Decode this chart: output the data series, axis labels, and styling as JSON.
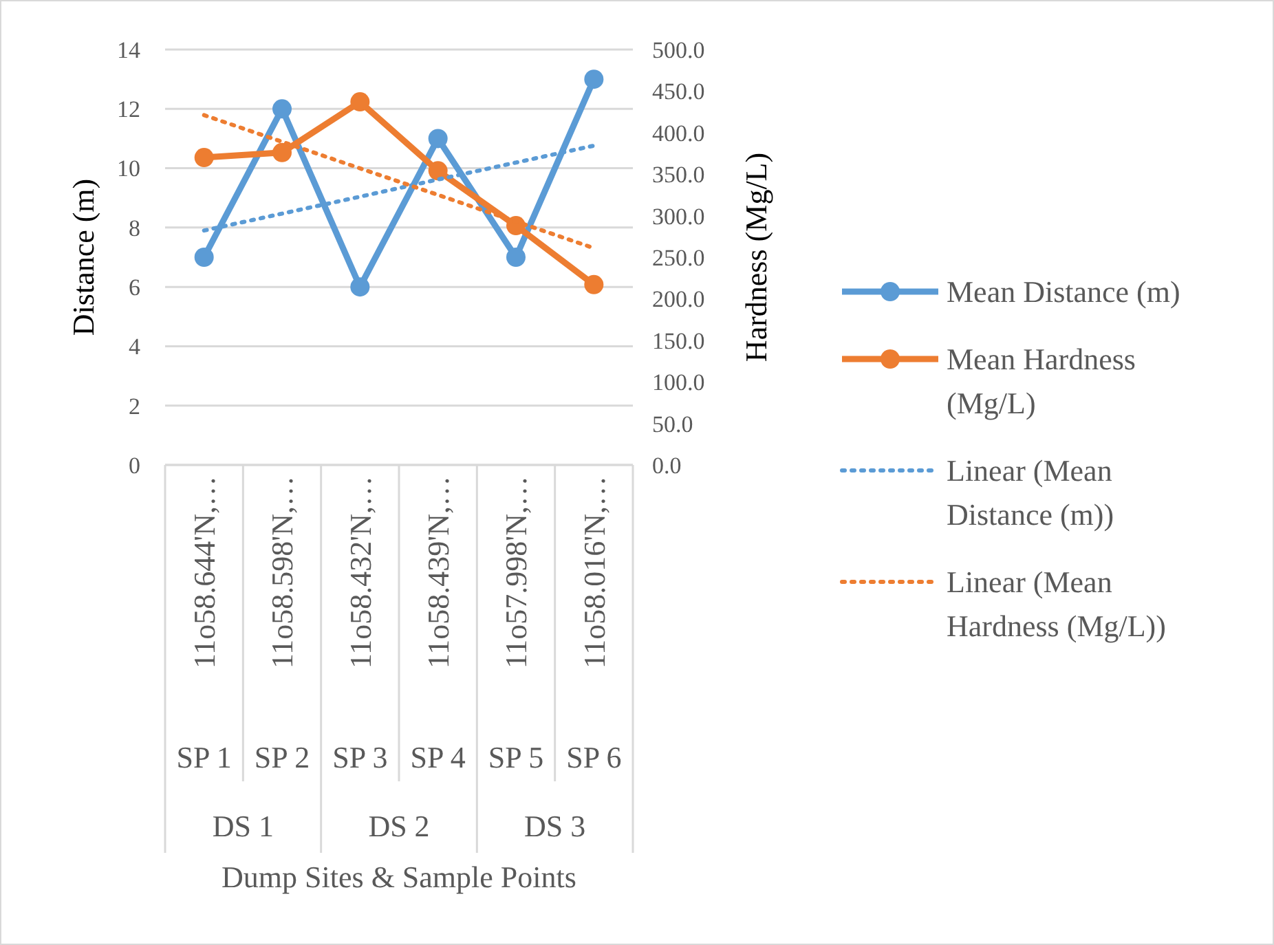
{
  "chart_data": {
    "type": "line",
    "ylabel": "Distance (m)",
    "y2label": "Hardness (Mg/L)",
    "categories": [
      "11o58.644'N,…\nSP 1",
      "11o58.598'N,…\nSP 2",
      "11o58.432'N,…\nSP 3",
      "11o58.439'N,…\nSP 4",
      "11o57.998'N,…\nSP 5",
      "11o58.016'N,…\nSP 6"
    ],
    "annotations": [
      "DS 1",
      "DS 2",
      "DS 3",
      "Dump Sites & Sample Points"
    ],
    "ylim": [
      0,
      14
    ],
    "yticks": [
      0,
      2,
      4,
      6,
      8,
      10,
      12,
      14
    ],
    "y2lim": [
      0,
      500
    ],
    "y2ticks": [
      {
        "value": 0,
        "label": "0.0"
      },
      {
        "value": 50,
        "label": "50.0"
      },
      {
        "value": 100,
        "label": "100.0"
      },
      {
        "value": 150,
        "label": "150.0"
      },
      {
        "value": 200,
        "label": "200.0"
      },
      {
        "value": 250,
        "label": "250.0"
      },
      {
        "value": 300,
        "label": "300.0"
      },
      {
        "value": 350,
        "label": "350.0"
      },
      {
        "value": 400,
        "label": "400.0"
      },
      {
        "value": 450,
        "label": "450.0"
      },
      {
        "value": 500,
        "label": "500.0"
      }
    ],
    "grid": "y",
    "legend": "right",
    "series": [
      {
        "name": "Mean Distance (m)",
        "color": "#5b9bd5",
        "values": [
          7,
          12,
          6,
          11,
          7,
          13
        ],
        "marker": "circle",
        "line_style": "solid"
      },
      {
        "name": "Mean Hardness (Mg/L)",
        "color": "#ed7d31",
        "axis": "y2",
        "values": [
          370,
          376,
          437,
          354,
          288,
          217
        ],
        "marker": "circle",
        "line_style": "solid"
      },
      {
        "name": "Linear (Mean Distance (m))",
        "color": "#5b9bd5",
        "values": [
          7.9,
          8.47,
          9.04,
          9.62,
          10.19,
          10.76
        ],
        "marker": "none",
        "line_style": "dotted"
      },
      {
        "name": "Linear (Mean Hardness (Mg/L))",
        "color": "#ed7d31",
        "axis": "y2",
        "values": [
          421,
          389,
          357,
          325,
          293,
          261
        ],
        "marker": "none",
        "line_style": "dotted"
      }
    ]
  }
}
